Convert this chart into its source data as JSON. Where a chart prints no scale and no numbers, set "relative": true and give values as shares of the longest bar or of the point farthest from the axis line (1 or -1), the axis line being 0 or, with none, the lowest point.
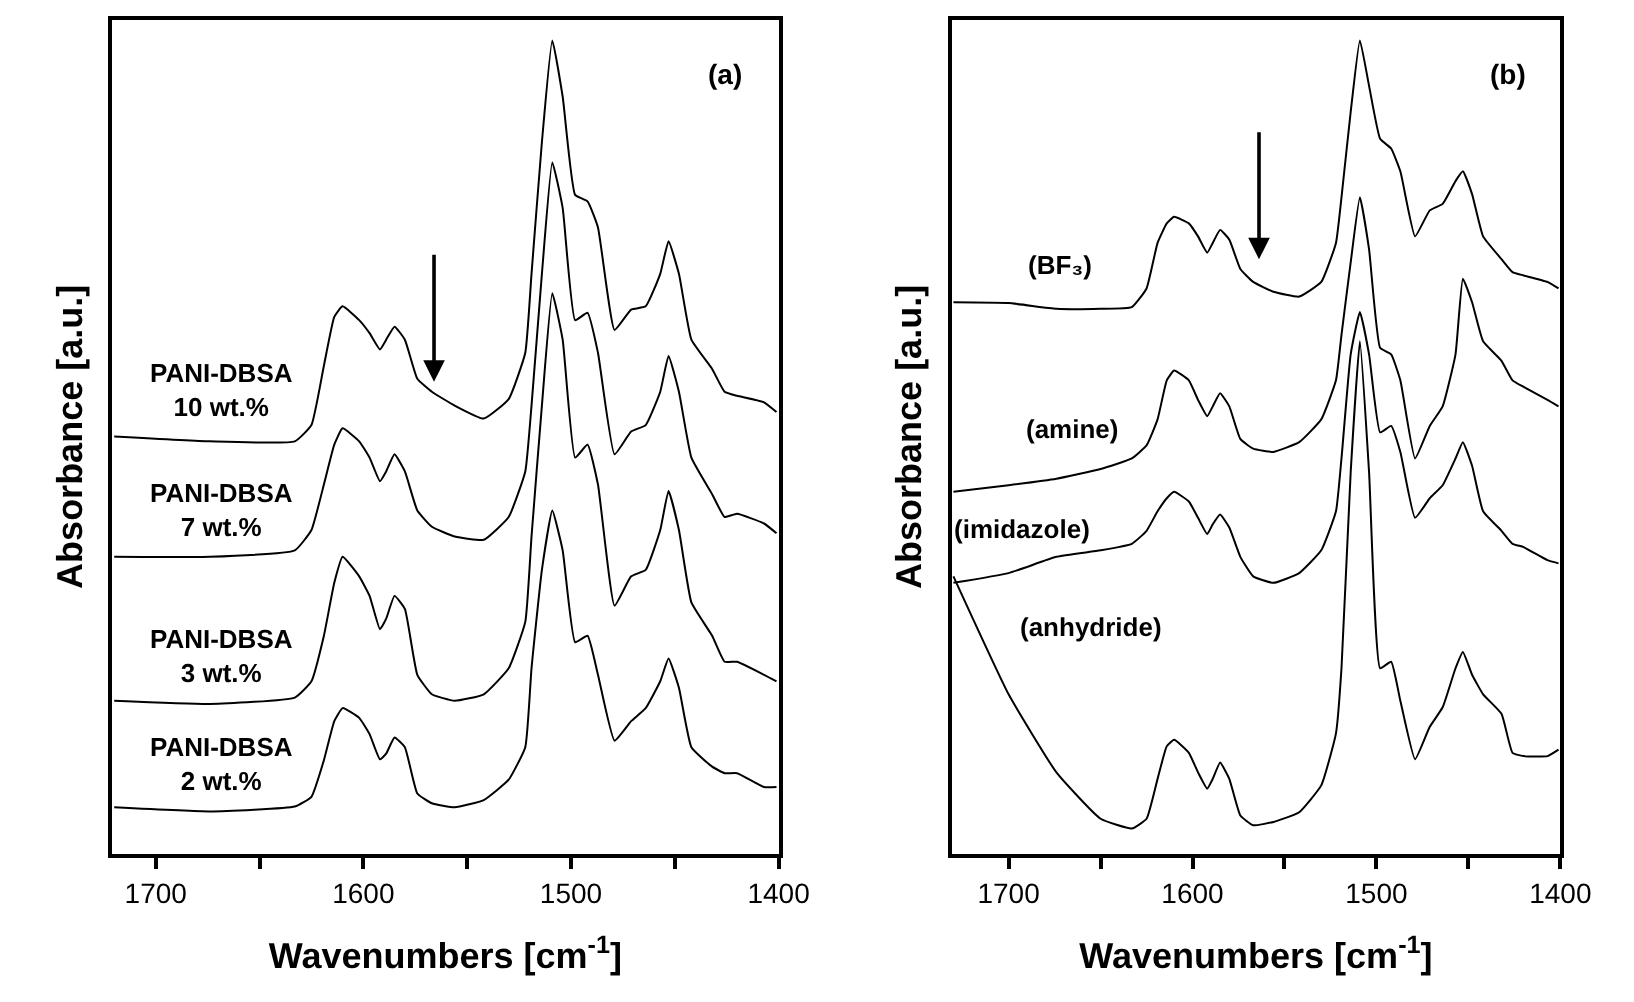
{
  "chart_data": [
    {
      "type": "line",
      "relative": true,
      "xlabel": "Wavenumbers [cm$^{-1}$]",
      "ylabel": "Absorbance [a.u.]",
      "xlim": [
        1721,
        1400
      ],
      "xticks": [
        1700,
        {
          "value": 1650,
          "label": null
        },
        1600,
        {
          "value": 1550,
          "label": null
        },
        1500,
        {
          "value": 1450,
          "label": null
        },
        1400
      ],
      "legend": false,
      "annotations": [
        "(a)"
      ],
      "x": [
        1720,
        1674,
        1633,
        1625,
        1619,
        1614,
        1610,
        1602,
        1597,
        1592,
        1589,
        1585,
        1580,
        1574,
        1567,
        1556,
        1542,
        1530,
        1522,
        1519,
        1514,
        1509,
        1504,
        1498,
        1492,
        1487,
        1479,
        1471,
        1464,
        1457,
        1453,
        1448,
        1442,
        1432,
        1426,
        1420,
        1407,
        1401
      ],
      "series": [
        {
          "name": "PANI-DBSA\n10 wt.%",
          "color": "#000000",
          "values": [
            0.513,
            0.507,
            0.507,
            0.527,
            0.6,
            0.66,
            0.673,
            0.656,
            0.64,
            0.62,
            0.632,
            0.648,
            0.632,
            0.584,
            0.568,
            0.551,
            0.535,
            0.559,
            0.616,
            0.713,
            0.875,
            1.0,
            0.931,
            0.81,
            0.802,
            0.77,
            0.644,
            0.669,
            0.673,
            0.713,
            0.753,
            0.713,
            0.632,
            0.596,
            0.568,
            0.563,
            0.555,
            0.543
          ]
        },
        {
          "name": "PANI-DBSA\n7 wt.%",
          "color": "#000000",
          "values": [
            0.365,
            0.365,
            0.373,
            0.398,
            0.454,
            0.503,
            0.523,
            0.507,
            0.487,
            0.458,
            0.47,
            0.491,
            0.47,
            0.422,
            0.402,
            0.39,
            0.386,
            0.414,
            0.47,
            0.551,
            0.713,
            0.85,
            0.794,
            0.656,
            0.665,
            0.616,
            0.491,
            0.519,
            0.527,
            0.568,
            0.612,
            0.568,
            0.487,
            0.442,
            0.414,
            0.418,
            0.406,
            0.394
          ]
        },
        {
          "name": "PANI-DBSA\n3 wt.%",
          "color": "#000000",
          "values": [
            0.188,
            0.184,
            0.192,
            0.212,
            0.268,
            0.333,
            0.365,
            0.341,
            0.317,
            0.276,
            0.289,
            0.317,
            0.301,
            0.22,
            0.196,
            0.188,
            0.196,
            0.228,
            0.285,
            0.39,
            0.551,
            0.689,
            0.632,
            0.487,
            0.503,
            0.454,
            0.305,
            0.341,
            0.349,
            0.398,
            0.446,
            0.398,
            0.309,
            0.268,
            0.236,
            0.236,
            0.22,
            0.212
          ]
        },
        {
          "name": "PANI-DBSA\n2 wt.%",
          "color": "#000000",
          "values": [
            0.057,
            0.052,
            0.058,
            0.07,
            0.115,
            0.163,
            0.179,
            0.167,
            0.147,
            0.116,
            0.123,
            0.143,
            0.131,
            0.074,
            0.062,
            0.057,
            0.066,
            0.091,
            0.131,
            0.228,
            0.349,
            0.422,
            0.373,
            0.26,
            0.268,
            0.22,
            0.139,
            0.163,
            0.179,
            0.212,
            0.24,
            0.204,
            0.131,
            0.107,
            0.099,
            0.099,
            0.082,
            0.082
          ]
        }
      ]
    },
    {
      "type": "line",
      "relative": true,
      "xlabel": "Wavenumbers [cm$^{-1}$]",
      "ylabel": "Absorbance [a.u.]",
      "xlim": [
        1731,
        1400
      ],
      "xticks": [
        1700,
        {
          "value": 1650,
          "label": null
        },
        1600,
        {
          "value": 1550,
          "label": null
        },
        1500,
        {
          "value": 1450,
          "label": null
        },
        1400
      ],
      "legend": false,
      "annotations": [
        "(b)"
      ],
      "x": [
        1730,
        1700,
        1674,
        1650,
        1633,
        1625,
        1619,
        1614,
        1610,
        1602,
        1597,
        1592,
        1589,
        1585,
        1580,
        1574,
        1567,
        1556,
        1542,
        1530,
        1522,
        1519,
        1514,
        1509,
        1504,
        1498,
        1492,
        1487,
        1479,
        1471,
        1464,
        1457,
        1453,
        1448,
        1442,
        1432,
        1426,
        1420,
        1407,
        1401
      ],
      "series": [
        {
          "name": "(BF₃)",
          "color": "#000000",
          "values": [
            0.678,
            0.677,
            0.67,
            0.67,
            0.672,
            0.695,
            0.751,
            0.775,
            0.783,
            0.775,
            0.759,
            0.739,
            0.751,
            0.767,
            0.755,
            0.719,
            0.703,
            0.691,
            0.685,
            0.703,
            0.751,
            0.807,
            0.912,
            1.0,
            0.944,
            0.879,
            0.867,
            0.839,
            0.759,
            0.791,
            0.799,
            0.827,
            0.839,
            0.811,
            0.759,
            0.731,
            0.715,
            0.711,
            0.703,
            0.695
          ]
        },
        {
          "name": "(amine)",
          "color": "#000000",
          "values": [
            0.445,
            0.453,
            0.461,
            0.473,
            0.486,
            0.502,
            0.534,
            0.582,
            0.594,
            0.582,
            0.558,
            0.538,
            0.55,
            0.566,
            0.55,
            0.51,
            0.498,
            0.494,
            0.506,
            0.534,
            0.582,
            0.638,
            0.727,
            0.807,
            0.743,
            0.622,
            0.614,
            0.582,
            0.486,
            0.526,
            0.55,
            0.614,
            0.707,
            0.678,
            0.63,
            0.606,
            0.582,
            0.574,
            0.558,
            0.55
          ]
        },
        {
          "name": "(imidazole)",
          "color": "#000000",
          "values": [
            0.333,
            0.345,
            0.365,
            0.373,
            0.381,
            0.397,
            0.421,
            0.437,
            0.445,
            0.433,
            0.413,
            0.393,
            0.405,
            0.417,
            0.401,
            0.365,
            0.341,
            0.333,
            0.345,
            0.373,
            0.421,
            0.486,
            0.614,
            0.666,
            0.614,
            0.518,
            0.526,
            0.494,
            0.413,
            0.437,
            0.453,
            0.486,
            0.506,
            0.477,
            0.421,
            0.397,
            0.381,
            0.377,
            0.361,
            0.357
          ]
        },
        {
          "name": "(anhydride)",
          "color": "#000000",
          "values": [
            0.341,
            0.196,
            0.1,
            0.043,
            0.031,
            0.043,
            0.092,
            0.132,
            0.14,
            0.124,
            0.1,
            0.08,
            0.092,
            0.112,
            0.092,
            0.047,
            0.035,
            0.039,
            0.051,
            0.084,
            0.148,
            0.228,
            0.469,
            0.63,
            0.469,
            0.228,
            0.236,
            0.188,
            0.116,
            0.156,
            0.18,
            0.228,
            0.248,
            0.22,
            0.196,
            0.172,
            0.124,
            0.12,
            0.12,
            0.128
          ]
        }
      ]
    }
  ]
}
